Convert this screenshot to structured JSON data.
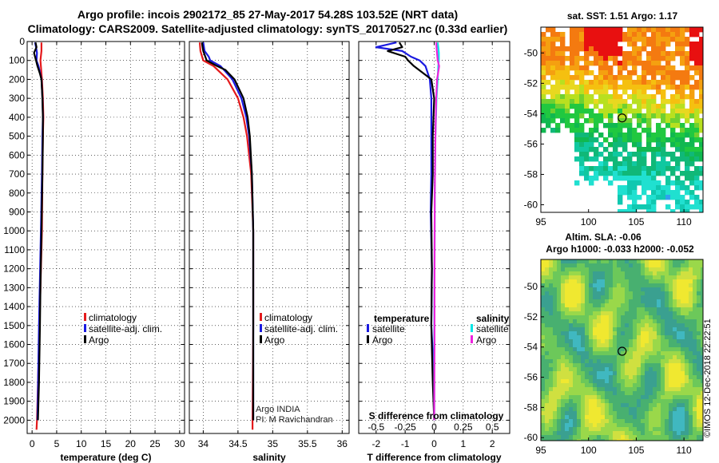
{
  "header": {
    "title_line1": "Argo profile: incois 2902172_85 27-May-2017 54.28S 103.52E (NRT data)",
    "title_line2": "Climatology: CARS2009. Satellite-adjusted climatology: synTS_20170527.nc (0.33d earlier)"
  },
  "colors": {
    "climatology": "#e41a1c",
    "satellite": "#1a1ae0",
    "argo": "#000000",
    "salinity_satellite": "#00e5e5",
    "salinity_argo": "#ee22dd"
  },
  "chart_data": [
    {
      "id": "temperature",
      "type": "line",
      "xlabel": "temperature (deg C)",
      "ylabel": "",
      "xlim": [
        -1,
        31
      ],
      "ylim": [
        2070,
        0
      ],
      "xticks": [
        0,
        5,
        10,
        15,
        20,
        25,
        30
      ],
      "xtick_labels": [
        "0",
        "5",
        "10",
        "15",
        "20",
        "25",
        "30"
      ],
      "yticks": [
        0,
        100,
        200,
        300,
        400,
        500,
        600,
        700,
        800,
        900,
        1000,
        1100,
        1200,
        1300,
        1400,
        1500,
        1600,
        1700,
        1800,
        1900,
        2000
      ],
      "ytick_labels": [
        "0",
        "100",
        "200",
        "300",
        "400",
        "500",
        "600",
        "700",
        "800",
        "900",
        "1000",
        "1100",
        "1200",
        "1300",
        "1400",
        "1500",
        "1600",
        "1700",
        "1800",
        "1900",
        "2000"
      ],
      "grid": true,
      "legend_position": "bottom-right",
      "series": [
        {
          "name": "climatology",
          "color": "#e41a1c",
          "depth": [
            5,
            50,
            100,
            130,
            200,
            300,
            400,
            500,
            700,
            1000,
            1500,
            2000,
            2050
          ],
          "values": [
            1.9,
            1.9,
            1.7,
            1.8,
            2.0,
            2.2,
            2.3,
            2.2,
            2.1,
            2.0,
            1.5,
            1.0,
            0.9
          ]
        },
        {
          "name": "satellite-adj. clim.",
          "color": "#1a1ae0",
          "depth": [
            5,
            30,
            60,
            100,
            130,
            200,
            300,
            400,
            500,
            700,
            1000,
            1500,
            2000
          ],
          "values": [
            0.6,
            0.8,
            1.0,
            0.9,
            1.3,
            1.9,
            2.1,
            2.2,
            2.1,
            2.0,
            1.8,
            1.4,
            1.1
          ]
        },
        {
          "name": "Argo",
          "color": "#000000",
          "depth": [
            5,
            30,
            60,
            100,
            130,
            170,
            200,
            300,
            400,
            500,
            700,
            1000,
            1300,
            1500,
            1800,
            2000
          ],
          "values": [
            0.7,
            0.9,
            0.4,
            0.8,
            1.1,
            1.6,
            1.9,
            2.1,
            2.2,
            2.2,
            2.1,
            1.9,
            1.7,
            1.6,
            1.4,
            1.2
          ]
        }
      ]
    },
    {
      "id": "salinity",
      "type": "line",
      "xlabel": "salinity",
      "ylabel": "",
      "xlim": [
        33.8,
        36.1
      ],
      "ylim": [
        2070,
        0
      ],
      "xticks": [
        34,
        34.5,
        35,
        35.5,
        36
      ],
      "xtick_labels": [
        "34",
        "34.5",
        "35",
        "35.5",
        "36"
      ],
      "grid": true,
      "legend_position": "bottom-right",
      "annotation": [
        "Argo INDIA",
        "PI: M Ravichandran"
      ],
      "series": [
        {
          "name": "climatology",
          "color": "#e41a1c",
          "depth": [
            5,
            50,
            100,
            130,
            200,
            300,
            400,
            500,
            700,
            1000,
            1500,
            2000,
            2050
          ],
          "values": [
            33.95,
            33.96,
            34.0,
            34.15,
            34.35,
            34.5,
            34.58,
            34.63,
            34.69,
            34.72,
            34.72,
            34.71,
            34.71
          ]
        },
        {
          "name": "satellite-adj. clim.",
          "color": "#1a1ae0",
          "depth": [
            5,
            50,
            80,
            100,
            130,
            200,
            300,
            400,
            500,
            700,
            1000,
            1500,
            2000
          ],
          "values": [
            34.0,
            34.02,
            34.08,
            34.1,
            34.25,
            34.42,
            34.55,
            34.62,
            34.66,
            34.7,
            34.72,
            34.72,
            34.72
          ]
        },
        {
          "name": "Argo",
          "color": "#000000",
          "depth": [
            5,
            50,
            100,
            130,
            150,
            200,
            300,
            400,
            500,
            700,
            1000,
            1500,
            2000
          ],
          "values": [
            33.98,
            34.0,
            34.05,
            34.2,
            34.32,
            34.45,
            34.58,
            34.64,
            34.67,
            34.7,
            34.72,
            34.72,
            34.72
          ]
        }
      ]
    },
    {
      "id": "difference",
      "type": "line",
      "xlabel": "T difference from climatology",
      "xlabel_top": "S difference from climatology",
      "xlim": [
        -2.6,
        2.6
      ],
      "ylim": [
        2070,
        0
      ],
      "xticks": [
        -2,
        -1,
        0,
        1,
        2
      ],
      "xtick_labels": [
        "-2",
        "-1",
        "0",
        "1",
        "2"
      ],
      "xticks_s": [
        -0.5,
        -0.25,
        0,
        0.25,
        0.5
      ],
      "xtick_labels_s": [
        "-0.5",
        "-0.25",
        "0",
        "0.25",
        "0.5"
      ],
      "grid": true,
      "legend_position": "bottom",
      "legend_temperature_title": "temperature",
      "legend_salinity_title": "salinity",
      "legend_temperature": [
        {
          "name": "satellite",
          "color": "#1a1ae0"
        },
        {
          "name": "Argo",
          "color": "#000000"
        }
      ],
      "legend_salinity": [
        {
          "name": "satellite",
          "color": "#00e5e5"
        },
        {
          "name": "Argo",
          "color": "#ee22dd"
        }
      ],
      "series": [
        {
          "name": "T satellite",
          "color": "#1a1ae0",
          "depth": [
            5,
            30,
            50,
            80,
            100,
            130,
            200,
            300,
            500,
            700,
            900,
            1200,
            1500,
            1800,
            2000
          ],
          "values": [
            -1.3,
            -2.0,
            -1.1,
            -0.8,
            -0.5,
            -0.3,
            -0.15,
            -0.1,
            -0.1,
            -0.1,
            -0.12,
            -0.08,
            -0.1,
            0.0,
            0.0
          ]
        },
        {
          "name": "T Argo",
          "color": "#000000",
          "depth": [
            5,
            30,
            50,
            80,
            100,
            130,
            200,
            300,
            500,
            700,
            900,
            1200,
            1500,
            1800,
            2000
          ],
          "values": [
            -1.2,
            -1.1,
            -1.6,
            -1.0,
            -0.9,
            -0.7,
            -0.1,
            0.0,
            -0.05,
            -0.05,
            -0.1,
            -0.08,
            -0.1,
            -0.05,
            0.0
          ]
        },
        {
          "name": "S satellite",
          "color": "#00e5e5",
          "depth": [
            5,
            30,
            60,
            100,
            130,
            200,
            300,
            500,
            800,
            1200,
            1600,
            2000
          ],
          "values": [
            0.12,
            0.14,
            0.16,
            0.16,
            0.14,
            0.12,
            0.08,
            0.04,
            0.02,
            0.01,
            0.0,
            0.0
          ]
        },
        {
          "name": "S Argo",
          "color": "#ee22dd",
          "depth": [
            5,
            50,
            100,
            130,
            150,
            200,
            300,
            500,
            800,
            1200,
            1600,
            2000
          ],
          "values": [
            0.07,
            0.09,
            0.12,
            0.17,
            0.15,
            0.1,
            0.07,
            0.04,
            0.02,
            0.01,
            0.01,
            0.0
          ]
        }
      ]
    },
    {
      "id": "sst_map",
      "type": "heatmap",
      "title": "sat. SST: 1.51 Argo: 1.17",
      "xlim": [
        95,
        112
      ],
      "ylim": [
        -60.5,
        -48.3
      ],
      "xticks": [
        95,
        100,
        105,
        110
      ],
      "xtick_labels": [
        "95",
        "100",
        "105",
        "110"
      ],
      "yticks": [
        -50,
        -52,
        -54,
        -56,
        -58,
        -60
      ],
      "ytick_labels": [
        "-50",
        "-52",
        "-54",
        "-56",
        "-58",
        "-60"
      ],
      "profile_location": [
        103.52,
        -54.28
      ]
    },
    {
      "id": "sla_map",
      "type": "heatmap",
      "title_line1": "Altim. SLA: -0.06",
      "title_line2": "Argo h1000: -0.033 h2000: -0.052",
      "xlim": [
        95,
        112
      ],
      "ylim": [
        -60.2,
        -48.2
      ],
      "xticks": [
        95,
        100,
        105,
        110
      ],
      "xtick_labels": [
        "95",
        "100",
        "105",
        "110"
      ],
      "yticks": [
        -50,
        -52,
        -54,
        -56,
        -58,
        -60
      ],
      "ytick_labels": [
        "-50",
        "-52",
        "-54",
        "-56",
        "-58",
        "-60"
      ],
      "profile_location": [
        103.52,
        -54.28
      ]
    }
  ],
  "legends": {
    "temperature": [
      "climatology",
      "satellite-adj. clim.",
      "Argo"
    ],
    "salinity": [
      "climatology",
      "satellite-adj. clim.",
      "Argo"
    ]
  },
  "footer": {
    "stamp": "©IMOS 12-Dec-2018 22:22:51"
  }
}
